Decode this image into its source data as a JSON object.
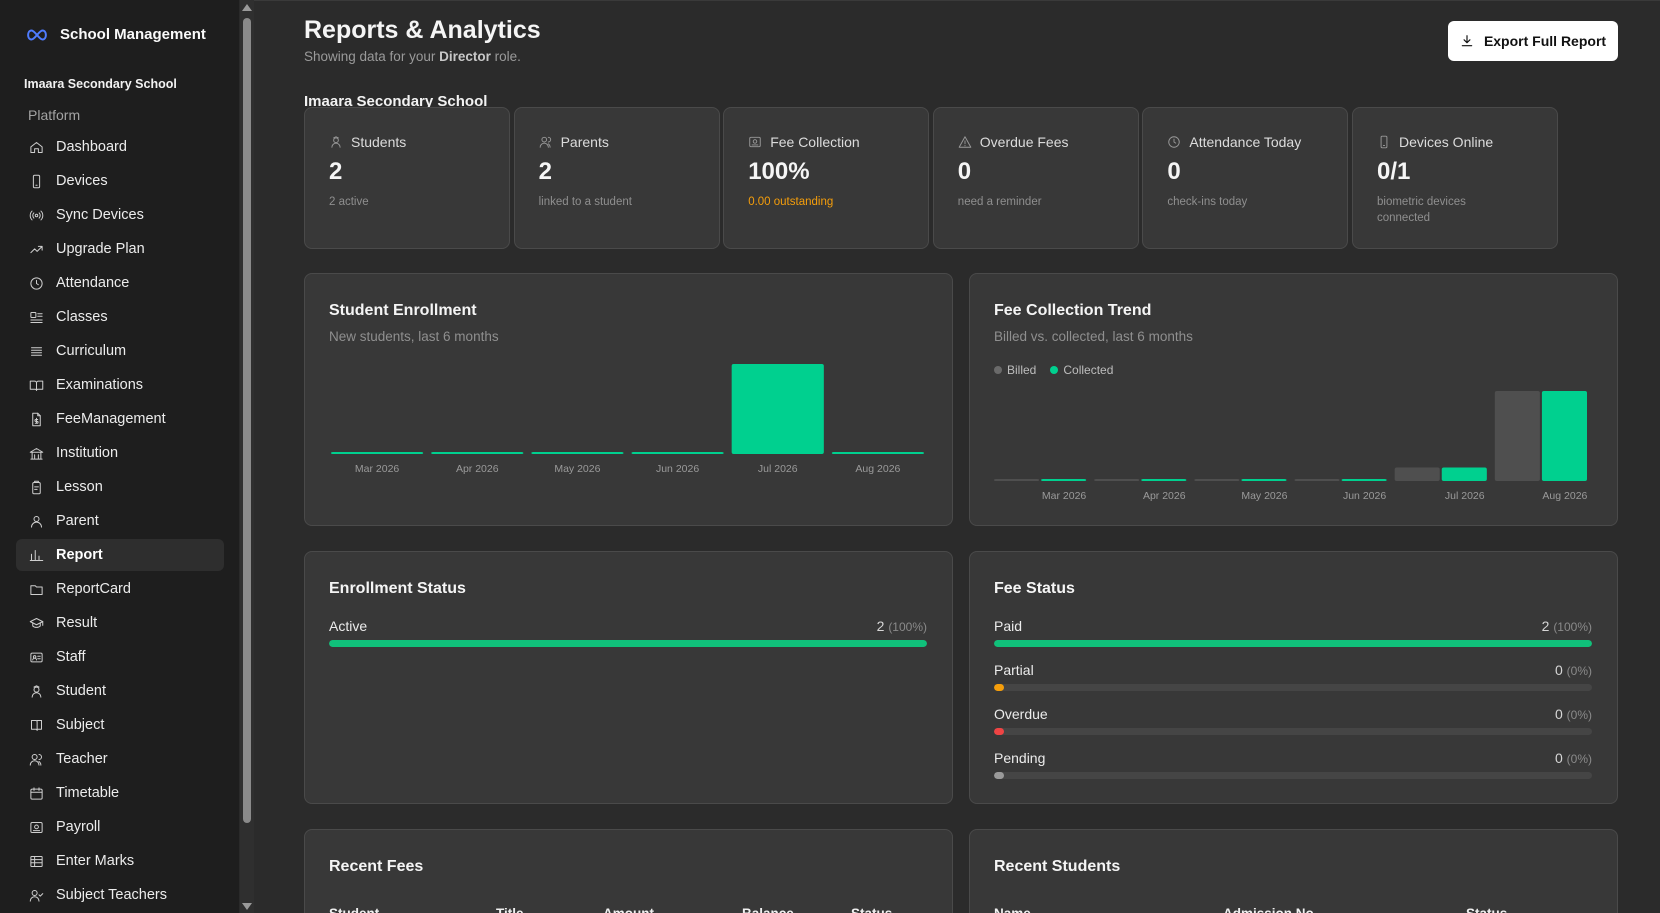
{
  "sidebar": {
    "brand": "School Management",
    "org": "Imaara Secondary School",
    "section": "Platform",
    "items": [
      {
        "label": "Dashboard",
        "icon": "home-icon"
      },
      {
        "label": "Devices",
        "icon": "smartphone-icon"
      },
      {
        "label": "Sync Devices",
        "icon": "radio-icon"
      },
      {
        "label": "Upgrade Plan",
        "icon": "trending-up-icon"
      },
      {
        "label": "Attendance",
        "icon": "clock-icon"
      },
      {
        "label": "Classes",
        "icon": "classes-icon"
      },
      {
        "label": "Curriculum",
        "icon": "list-icon"
      },
      {
        "label": "Examinations",
        "icon": "book-open-icon"
      },
      {
        "label": "FeeManagement",
        "icon": "file-dollar-icon"
      },
      {
        "label": "Institution",
        "icon": "institution-icon"
      },
      {
        "label": "Lesson",
        "icon": "clipboard-icon"
      },
      {
        "label": "Parent",
        "icon": "user-icon"
      },
      {
        "label": "Report",
        "icon": "bar-chart-icon",
        "active": true
      },
      {
        "label": "ReportCard",
        "icon": "folder-icon"
      },
      {
        "label": "Result",
        "icon": "graduation-cap-icon"
      },
      {
        "label": "Staff",
        "icon": "id-card-icon"
      },
      {
        "label": "Student",
        "icon": "students-icon"
      },
      {
        "label": "Subject",
        "icon": "book-icon"
      },
      {
        "label": "Teacher",
        "icon": "users-icon"
      },
      {
        "label": "Timetable",
        "icon": "calendar-icon"
      },
      {
        "label": "Payroll",
        "icon": "payroll-icon"
      },
      {
        "label": "Enter Marks",
        "icon": "table-icon"
      },
      {
        "label": "Subject Teachers",
        "icon": "user-check-icon"
      }
    ]
  },
  "header": {
    "title": "Reports & Analytics",
    "subtitle_prefix": "Showing data for your",
    "role": "Director",
    "subtitle_suffix": "role.",
    "export_label": "Export Full Report"
  },
  "school_name": "Imaara Secondary School",
  "stats": [
    {
      "label": "Students",
      "value": "2",
      "sub": "2 active",
      "icon": "students-icon"
    },
    {
      "label": "Parents",
      "value": "2",
      "sub": "linked to a student",
      "icon": "users-icon"
    },
    {
      "label": "Fee Collection",
      "value": "100%",
      "sub": "0.00 outstanding",
      "icon": "payroll-icon",
      "warn": true
    },
    {
      "label": "Overdue Fees",
      "value": "0",
      "sub": "need a reminder",
      "icon": "alert-triangle-icon"
    },
    {
      "label": "Attendance Today",
      "value": "0",
      "sub": "check-ins today",
      "icon": "clock-icon"
    },
    {
      "label": "Devices Online",
      "value": "0/1",
      "sub": "biometric devices connected",
      "icon": "smartphone-icon"
    }
  ],
  "colors": {
    "accent": "#00d08f",
    "billed": "#4f4f4f",
    "warn": "#f59e0b",
    "danger": "#ef4444",
    "muted": "#9a9a9a"
  },
  "chart_data": [
    {
      "type": "bar",
      "title": "Student Enrollment",
      "subtitle": "New students, last 6 months",
      "categories": [
        "Mar 2026",
        "Apr 2026",
        "May 2026",
        "Jun 2026",
        "Jul 2026",
        "Aug 2026"
      ],
      "values": [
        0,
        0,
        0,
        0,
        2,
        0
      ],
      "ylim": [
        0,
        2
      ]
    },
    {
      "type": "bar",
      "title": "Fee Collection Trend",
      "subtitle": "Billed vs. collected, last 6 months",
      "categories": [
        "Mar 2026",
        "Apr 2026",
        "May 2026",
        "Jun 2026",
        "Jul 2026",
        "Aug 2026"
      ],
      "series": [
        {
          "name": "Billed",
          "values": [
            0,
            0,
            0,
            0,
            15,
            100
          ]
        },
        {
          "name": "Collected",
          "values": [
            0,
            0,
            0,
            0,
            15,
            100
          ]
        }
      ],
      "ylim": [
        0,
        100
      ],
      "legend": "top-left"
    }
  ],
  "enrollment_status": {
    "title": "Enrollment Status",
    "rows": [
      {
        "label": "Active",
        "count": "2",
        "pct": "(100%)",
        "fraction": 1.0
      }
    ]
  },
  "fee_status": {
    "title": "Fee Status",
    "rows": [
      {
        "label": "Paid",
        "count": "2",
        "pct": "(100%)",
        "fraction": 1.0
      },
      {
        "label": "Partial",
        "count": "0",
        "pct": "(0%)",
        "fraction": 0
      },
      {
        "label": "Overdue",
        "count": "0",
        "pct": "(0%)",
        "fraction": 0
      },
      {
        "label": "Pending",
        "count": "0",
        "pct": "(0%)",
        "fraction": 0
      }
    ]
  },
  "recent_fees": {
    "title": "Recent Fees",
    "columns": [
      "Student",
      "Title",
      "Amount",
      "Balance",
      "Status"
    ]
  },
  "recent_students": {
    "title": "Recent Students",
    "columns": [
      "Name",
      "Admission No",
      "Status"
    ]
  }
}
